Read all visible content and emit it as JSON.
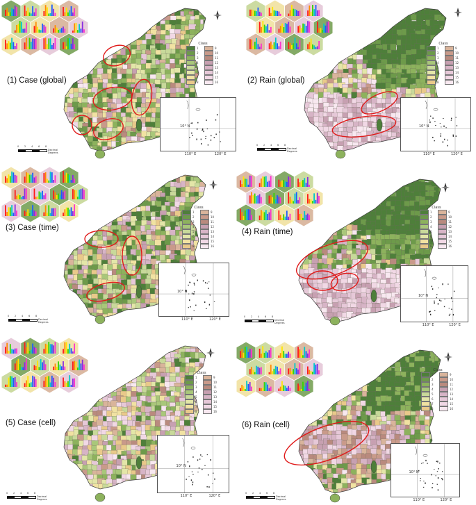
{
  "panels": [
    {
      "id": "p1",
      "title": "(1) Case (global)",
      "legend_title": "Class",
      "lat_label": "10° N",
      "lon_labels": [
        "110° E",
        "120° E"
      ],
      "scale_ticks": [
        "0",
        "2",
        "4",
        "6",
        "8"
      ],
      "scale_unit": "Decimal Degrees"
    },
    {
      "id": "p2",
      "title": "(2) Rain (global)",
      "legend_title": "Class",
      "lat_label": "10° N",
      "lon_labels": [
        "110° E",
        "120° E"
      ],
      "scale_ticks": [
        "0",
        "2",
        "4",
        "6",
        "8"
      ],
      "scale_unit": "Decimal Degrees"
    },
    {
      "id": "p3",
      "title": "(3) Case (time)",
      "legend_title": "Class",
      "lat_label": "10° N",
      "lon_labels": [
        "110° E",
        "120° E"
      ],
      "scale_ticks": [
        "0",
        "2",
        "4",
        "6",
        "8"
      ],
      "scale_unit": "Decimal Degrees"
    },
    {
      "id": "p4",
      "title": "(4) Rain (time)",
      "legend_title": "Class",
      "lat_label": "10° N",
      "lon_labels": [
        "110° E",
        "120° E"
      ],
      "scale_ticks": [
        "0",
        "2",
        "4",
        "6",
        "8"
      ],
      "scale_unit": "Decimal Degrees"
    },
    {
      "id": "p5",
      "title": "(5) Case (cell)",
      "legend_title": "Class",
      "lat_label": "10° N",
      "lon_labels": [
        "110° E",
        "120° E"
      ],
      "scale_ticks": [
        "0",
        "2",
        "4",
        "6",
        "8"
      ],
      "scale_unit": "Decimal Degrees"
    },
    {
      "id": "p6",
      "title": "(6) Rain (cell)",
      "legend_title": "Class",
      "lat_label": "10° N",
      "lon_labels": [
        "110° E",
        "120° E"
      ],
      "scale_ticks": [
        "0",
        "2",
        "4",
        "6",
        "8"
      ],
      "scale_unit": "Decimal Degrees"
    }
  ],
  "legend_classes": [
    "1",
    "2",
    "3",
    "4",
    "5",
    "6",
    "7",
    "8",
    "9",
    "10",
    "11",
    "12",
    "13",
    "14",
    "15",
    "16"
  ],
  "class_colors": [
    "#4e7f3a",
    "#6d9a4a",
    "#8db25d",
    "#a9c77a",
    "#c8d99a",
    "#e3e6a8",
    "#f1e2a2",
    "#e9c98a",
    "#d9b49b",
    "#c99a8a",
    "#b98a7e",
    "#c7a0b1",
    "#d7b4c6",
    "#e6c8d8",
    "#f1d8e5",
    "#f8e8f0"
  ],
  "bar_colors": [
    "#ff1a1a",
    "#ff8a00",
    "#ffe600",
    "#39d400",
    "#00c9c9",
    "#1a5cff",
    "#8a2be2",
    "#ff33cc"
  ]
}
